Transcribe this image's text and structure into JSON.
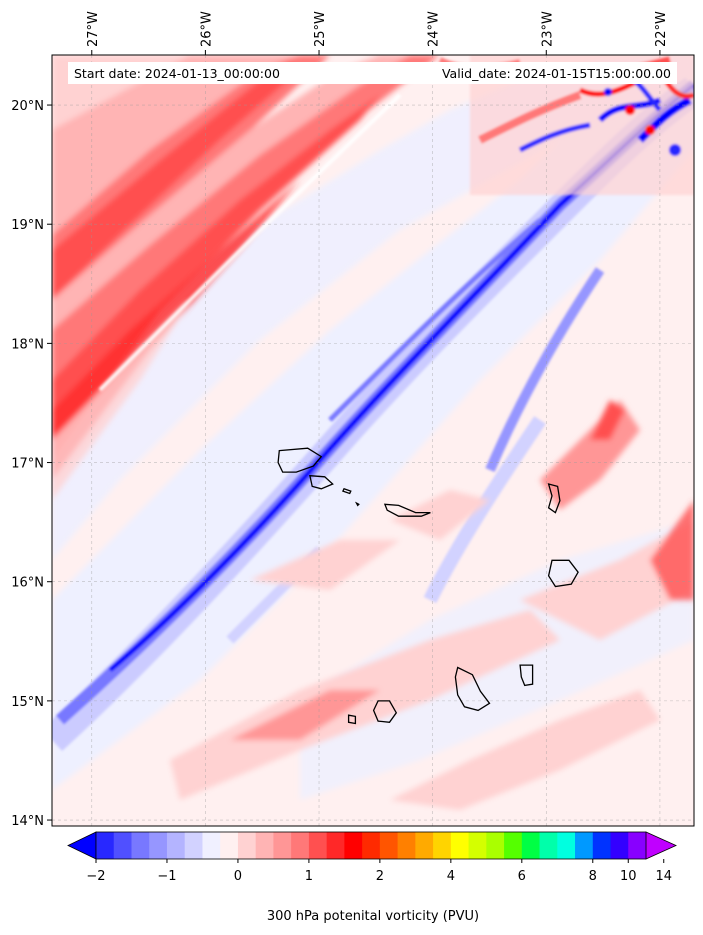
{
  "map": {
    "start_label": "Start date: 2024-01-13_00:00:00",
    "valid_label": "Valid_date: 2024-01-15T15:00:00.00",
    "lon_ticks": [
      "27°W",
      "26°W",
      "25°W",
      "24°W",
      "23°W",
      "22°W"
    ],
    "lat_ticks": [
      "20°N",
      "19°N",
      "18°N",
      "17°N",
      "16°N",
      "15°N",
      "14°N"
    ],
    "extent": {
      "lon_min": -27.35,
      "lon_max": -21.7,
      "lat_min": 13.95,
      "lat_max": 20.42
    },
    "gridlines": true,
    "islands": [
      "Santo Antão",
      "São Vicente",
      "Santa Luzia",
      "Branco",
      "São Nicolau",
      "Sal",
      "Boa Vista",
      "Maio",
      "Santiago",
      "Fogo",
      "Brava"
    ]
  },
  "colorbar": {
    "title": "300 hPa potenital vorticity (PVU)",
    "tick_labels": [
      "−2",
      "−1",
      "0",
      "1",
      "2",
      "4",
      "6",
      "8",
      "10",
      "14"
    ],
    "levels_low": [
      -2,
      -1.75,
      -1.5,
      -1.25,
      -1,
      -0.75,
      -0.5,
      -0.25,
      0,
      0.25,
      0.5,
      0.75,
      1,
      1.25,
      1.5,
      1.75,
      2
    ],
    "levels_high": [
      2,
      2.5,
      3,
      3.5,
      4,
      4.5,
      5,
      5.5,
      6,
      6.5,
      7,
      7.5,
      8,
      9,
      10,
      11,
      12,
      13,
      14,
      15
    ],
    "colors": [
      "#0000ff",
      "#2828ff",
      "#5050ff",
      "#7878ff",
      "#9696ff",
      "#b4b4ff",
      "#d2d2ff",
      "#f0f0ff",
      "#fff0f0",
      "#ffd2d2",
      "#ffb4b4",
      "#ff9696",
      "#ff7878",
      "#ff5050",
      "#ff2828",
      "#ff0000",
      "#ff2a00",
      "#ff5500",
      "#ff8000",
      "#ffaa00",
      "#ffd400",
      "#ffff00",
      "#d4ff00",
      "#aaff00",
      "#55ff00",
      "#00ff44",
      "#00ffaa",
      "#00ffe0",
      "#0099ff",
      "#0033ff",
      "#3300ff",
      "#8800ff",
      "#c000ff"
    ],
    "extend": "both"
  }
}
